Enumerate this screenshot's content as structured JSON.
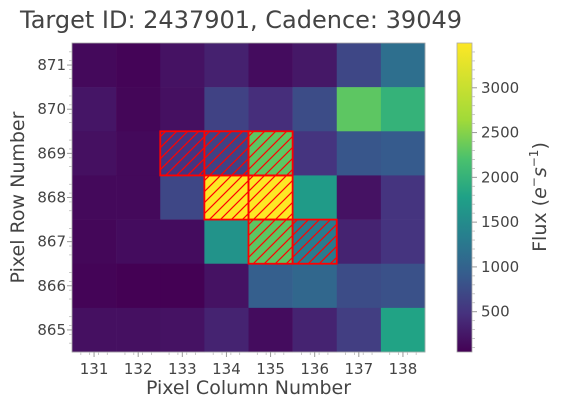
{
  "chart_data": {
    "type": "heatmap",
    "title": "Target ID: 2437901, Cadence: 39049",
    "xlabel": "Pixel Column Number",
    "ylabel": "Pixel Row Number",
    "x": [
      131,
      132,
      133,
      134,
      135,
      136,
      137,
      138
    ],
    "y": [
      871,
      870,
      869,
      868,
      867,
      866,
      865
    ],
    "values": [
      [
        120,
        80,
        200,
        330,
        150,
        250,
        700,
        1150
      ],
      [
        230,
        90,
        180,
        650,
        450,
        750,
        2300,
        2000
      ],
      [
        180,
        120,
        500,
        650,
        2300,
        500,
        850,
        900
      ],
      [
        120,
        120,
        700,
        3500,
        3500,
        1700,
        200,
        500
      ],
      [
        100,
        150,
        150,
        1600,
        2300,
        1300,
        350,
        500
      ],
      [
        80,
        30,
        30,
        200,
        950,
        1050,
        750,
        800
      ],
      [
        180,
        180,
        200,
        350,
        150,
        350,
        600,
        1800
      ]
    ],
    "mask_pixels": [
      {
        "col": 133,
        "row": 869
      },
      {
        "col": 134,
        "row": 869
      },
      {
        "col": 135,
        "row": 869
      },
      {
        "col": 134,
        "row": 868
      },
      {
        "col": 135,
        "row": 868
      },
      {
        "col": 135,
        "row": 867
      },
      {
        "col": 136,
        "row": 867
      }
    ],
    "colorbar": {
      "label": "Flux (e⁻s⁻¹)",
      "label_base": "Flux (",
      "label_e": "e",
      "label_s": "s",
      "label_close": ")",
      "exp_e": "−",
      "exp_s": "−1",
      "min": 50,
      "max": 3500,
      "ticks": [
        500,
        1000,
        1500,
        2000,
        2500,
        3000
      ]
    },
    "colormap": "viridis",
    "mask_color": "#ff0000",
    "grid": false
  }
}
